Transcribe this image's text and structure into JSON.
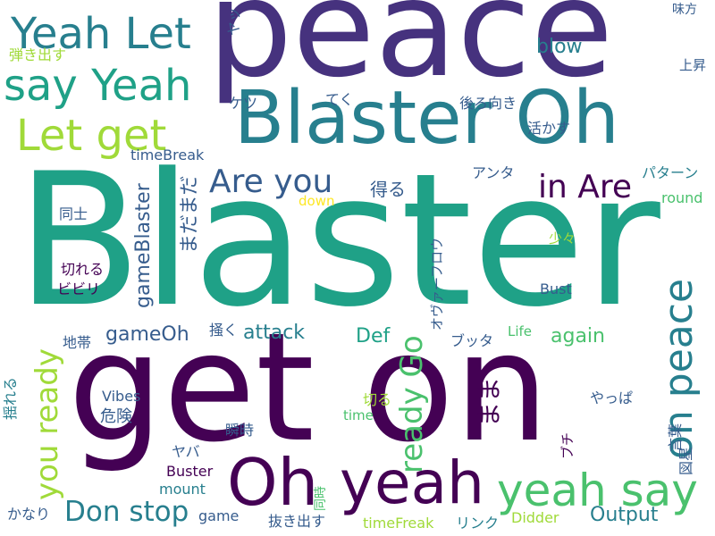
{
  "palette": {
    "dark_purple": "#440154",
    "indigo": "#46327e",
    "blue": "#365c8d",
    "teal_blue": "#277f8e",
    "teal": "#1fa187",
    "green": "#4ac16d",
    "lime": "#a0da39",
    "yellow": "#fde725"
  },
  "words": [
    "peace",
    "Blaster Oh",
    "Blaster",
    "get on",
    "Yeah Let",
    "say Yeah",
    "Let get",
    "Are you",
    "in Are",
    "on peace",
    "Oh",
    "yeah",
    "yeah say",
    "you ready",
    "ready Go",
    "Don stop",
    "まだまだ",
    "得る",
    "gameBlaster",
    "gameOh",
    "attack",
    "Def",
    "again",
    "まま",
    "blow",
    "ヤッ",
    "味方",
    "上昇",
    "弾き出す",
    "後ろ向き",
    "てく",
    "ケツ",
    "活かす",
    "アンタ",
    "パターン",
    "round",
    "timeBreak",
    "同士",
    "down",
    "少々",
    "切れる",
    "ビビリ",
    "Bust",
    "オヴァーフロウ",
    "Life",
    "ブッタ",
    "地帯",
    "掻く",
    "Vibes",
    "危険",
    "揺れる",
    "切る",
    "やっぱ",
    "瞬時",
    "time",
    "ヤバ",
    "Buster",
    "ブチ",
    "言葉",
    "図星",
    "mount",
    "同時",
    "かなり",
    "game",
    "抜き出す",
    "timeFreak",
    "リンク",
    "Didder",
    "Output"
  ]
}
